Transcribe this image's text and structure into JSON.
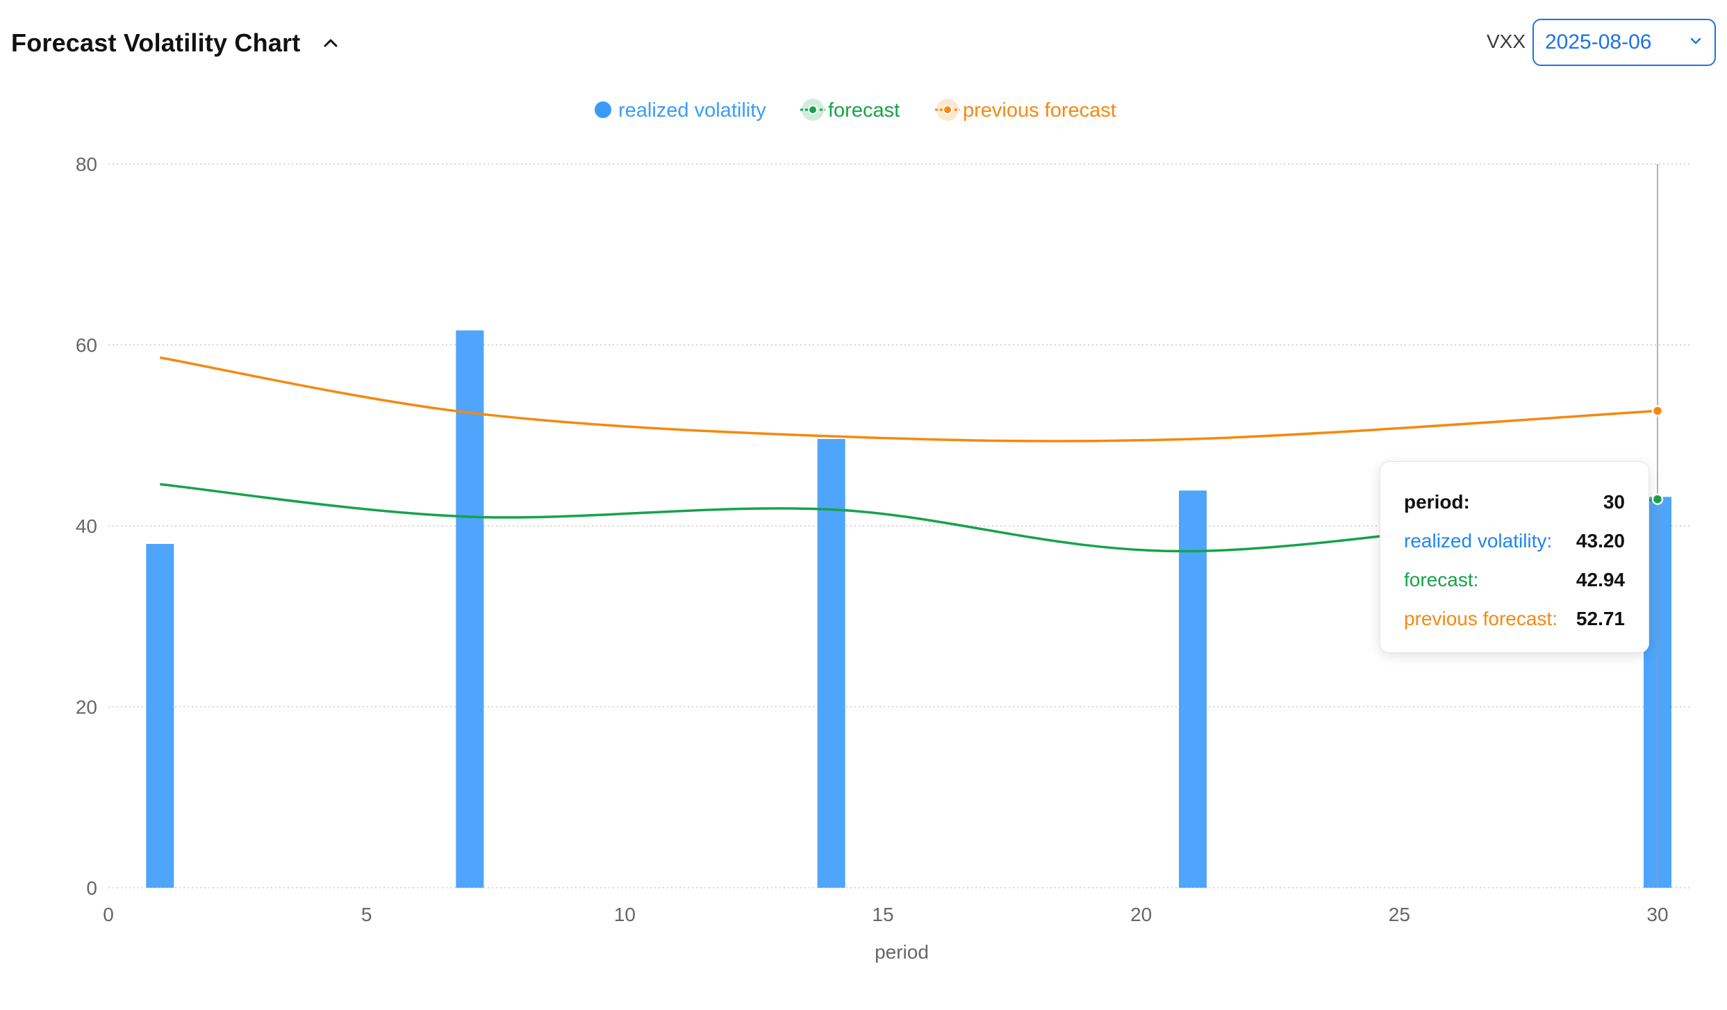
{
  "header": {
    "title": "Forecast Volatility Chart",
    "collapse_icon": "chevron-up-icon"
  },
  "controls": {
    "ticker": "VXX",
    "date": "2025-08-06",
    "dropdown_icon": "chevron-down-icon"
  },
  "colors": {
    "realized": "#3b9bf8",
    "forecast": "#16a34a",
    "previous": "#f5890f",
    "grid": "#c8c8c8",
    "axis_text": "#666666"
  },
  "chart_data": {
    "type": "bar",
    "xlabel": "period",
    "ylabel": "",
    "xlim": [
      0,
      30
    ],
    "ylim": [
      0,
      80
    ],
    "x_ticks": [
      0,
      5,
      10,
      15,
      20,
      25,
      30
    ],
    "y_ticks": [
      0,
      20,
      40,
      60,
      80
    ],
    "grid": true,
    "legend_position": "top-center",
    "series": [
      {
        "name": "realized volatility",
        "type": "bar",
        "x": [
          1,
          7,
          14,
          21,
          30
        ],
        "values": [
          38.0,
          61.6,
          49.6,
          43.9,
          43.2
        ]
      },
      {
        "name": "forecast",
        "type": "line",
        "x": [
          1,
          7,
          14,
          21,
          30
        ],
        "values": [
          44.6,
          41.0,
          41.8,
          37.2,
          42.94
        ]
      },
      {
        "name": "previous forecast",
        "type": "line",
        "x": [
          1,
          7,
          14,
          21,
          30
        ],
        "values": [
          58.6,
          52.5,
          49.9,
          49.6,
          52.71
        ]
      }
    ]
  },
  "tooltip": {
    "rows": [
      {
        "label": "period:",
        "value": "30"
      },
      {
        "label": "realized volatility:",
        "value": "43.20"
      },
      {
        "label": "forecast:",
        "value": "42.94"
      },
      {
        "label": "previous forecast:",
        "value": "52.71"
      }
    ]
  }
}
